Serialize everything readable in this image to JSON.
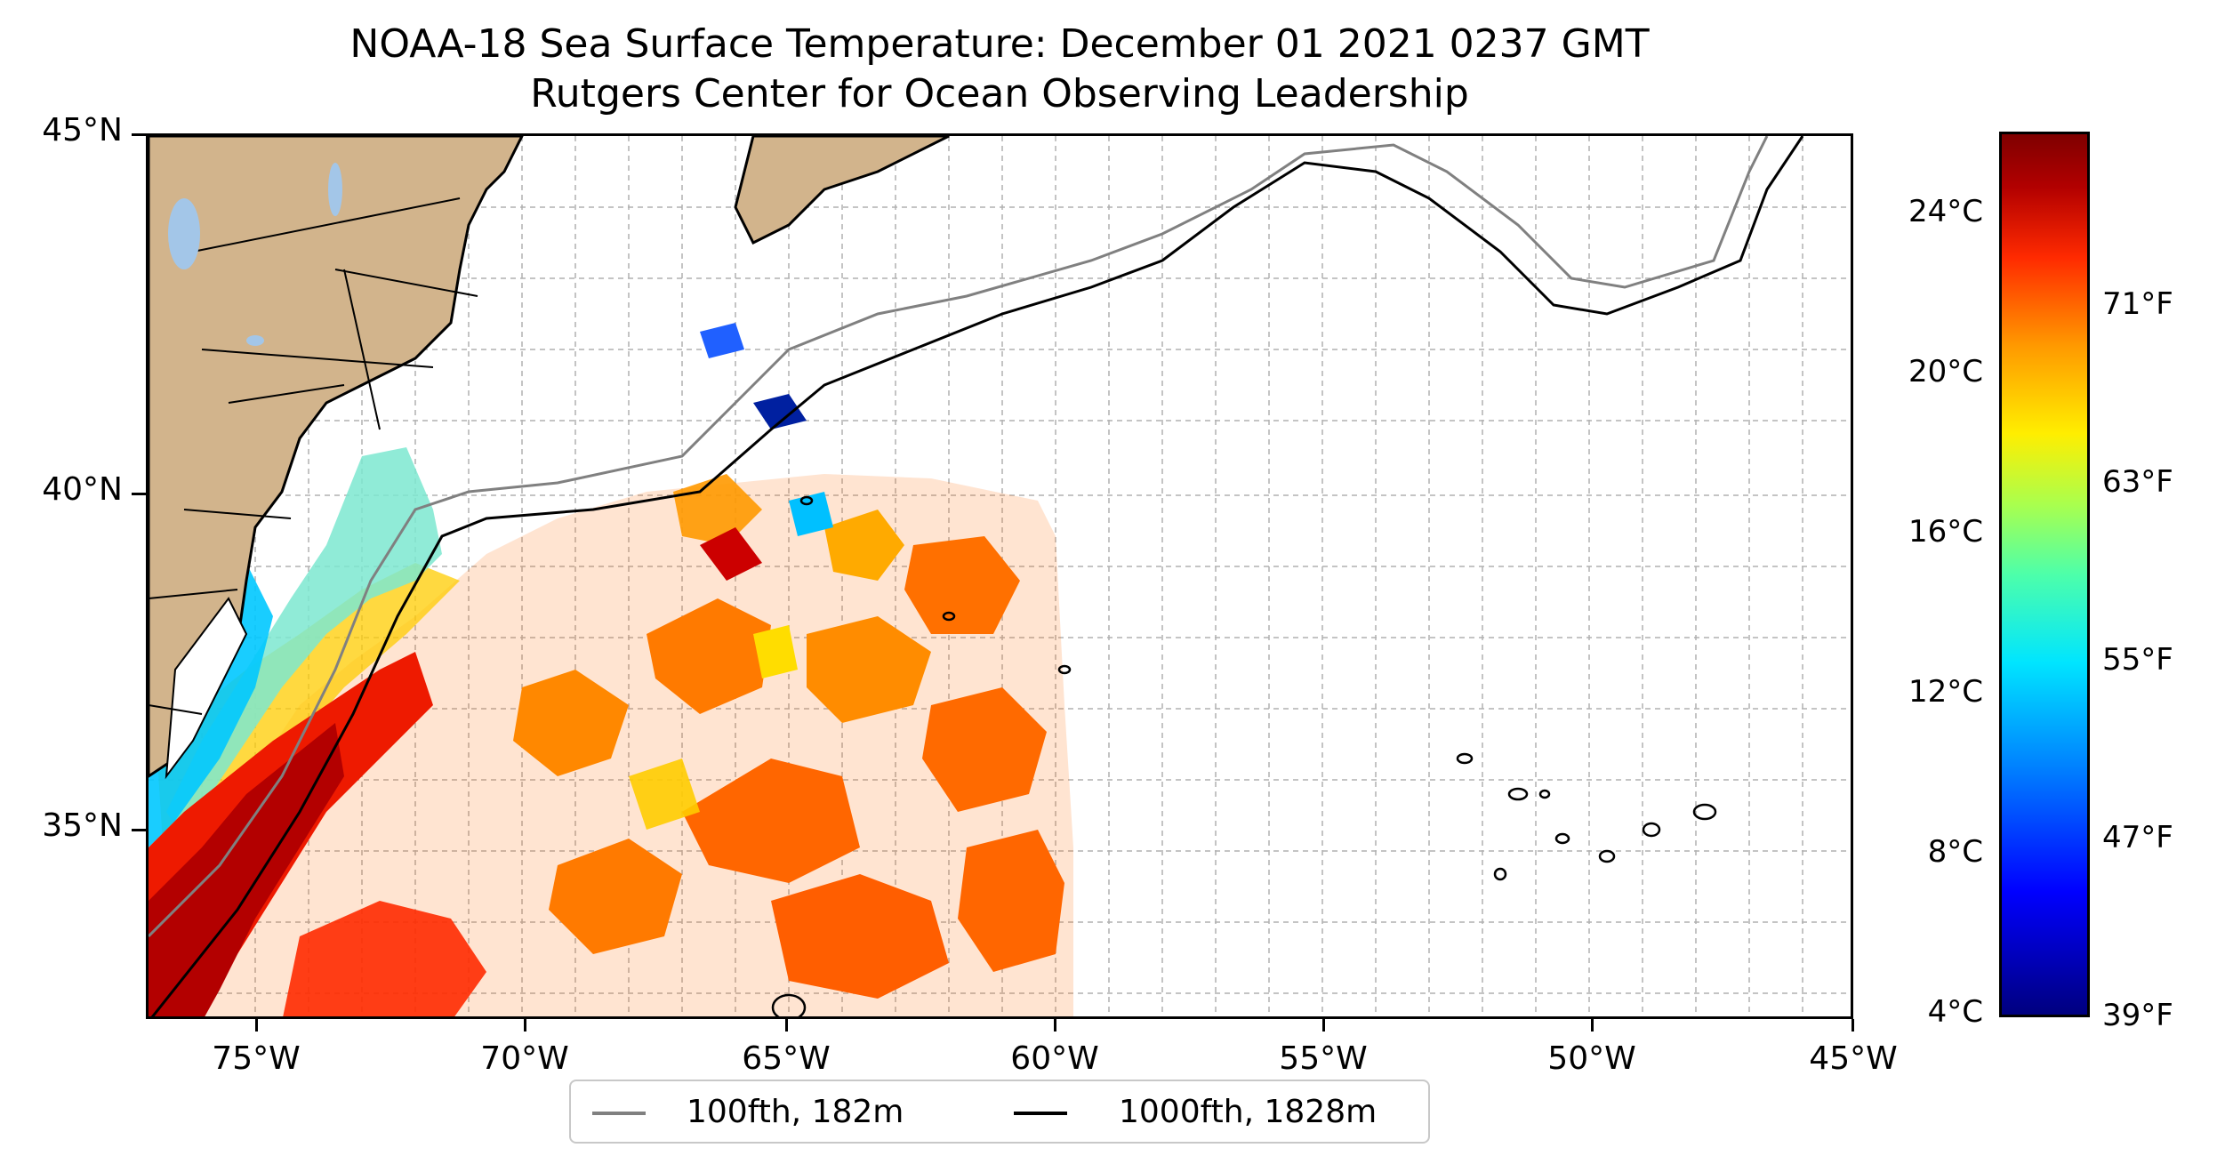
{
  "title": {
    "line1": "NOAA-18 Sea Surface Temperature: December 01 2021 0237 GMT",
    "line2": "Rutgers Center for Ocean Observing Leadership"
  },
  "axes": {
    "lat_labels": [
      "45°N",
      "40°N",
      "35°N"
    ],
    "lon_labels": [
      "75°W",
      "70°W",
      "65°W",
      "60°W",
      "55°W",
      "50°W",
      "45°W"
    ]
  },
  "colorbar": {
    "celsius_labels": [
      "24°C",
      "20°C",
      "16°C",
      "12°C",
      "8°C",
      "4°C"
    ],
    "fahrenheit_labels": [
      "71°F",
      "63°F",
      "55°F",
      "47°F",
      "39°F"
    ],
    "colormap": "jet"
  },
  "legend": {
    "items": [
      {
        "label": "100fth, 182m",
        "color": "#808080"
      },
      {
        "label": "1000fth, 1828m",
        "color": "#000000"
      }
    ]
  },
  "colors": {
    "land": "#d2b48c",
    "lakes": "#a3c6e8",
    "gridline": "#b0b0b0"
  }
}
